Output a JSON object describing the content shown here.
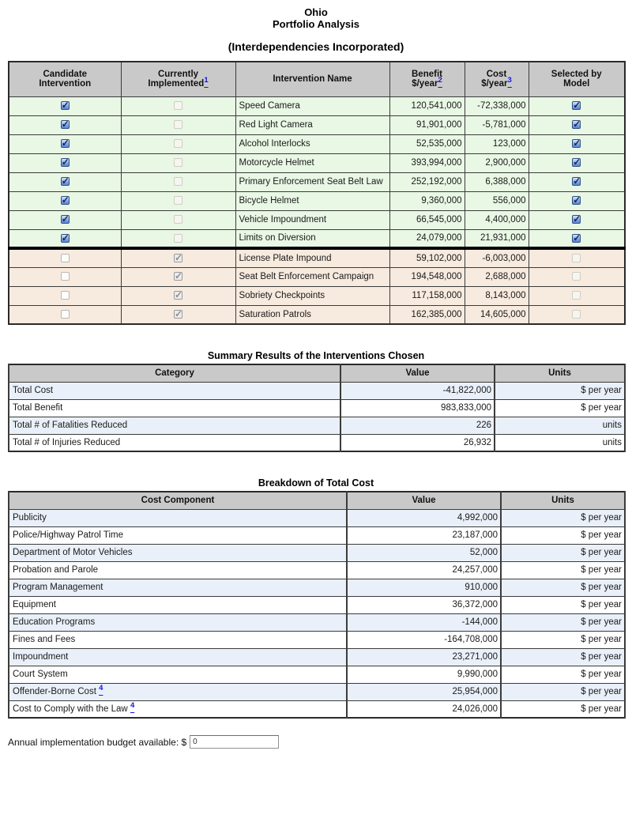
{
  "title": {
    "line1": "Ohio",
    "line2": "Portfolio Analysis",
    "line3": "(Interdependencies Incorporated)"
  },
  "colors": {
    "candidate_row": "#e9f7e5",
    "implemented_row": "#f7eade",
    "alt_row": "#eaf0f9",
    "header_bg": "#c9c9c9",
    "link_blue": "#1414e6",
    "checkbox_blue": "#5c85d6"
  },
  "main_table": {
    "headers": [
      {
        "line1": "Candidate",
        "line2": "Intervention"
      },
      {
        "line1": "Currently",
        "line2": "Implemented",
        "footnote": "1"
      },
      {
        "line1": "Intervention Name"
      },
      {
        "line1": "Benefit",
        "line2": "$/year",
        "footnote": "2"
      },
      {
        "line1": "Cost",
        "line2": "$/year",
        "footnote": "3"
      },
      {
        "line1": "Selected by",
        "line2": "Model"
      }
    ],
    "rows": [
      {
        "candidate": true,
        "implemented": false,
        "name": "Speed Camera",
        "benefit": "120,541,000",
        "cost": "-72,338,000",
        "selected": true,
        "section": "candidate"
      },
      {
        "candidate": true,
        "implemented": false,
        "name": "Red Light Camera",
        "benefit": "91,901,000",
        "cost": "-5,781,000",
        "selected": true,
        "section": "candidate"
      },
      {
        "candidate": true,
        "implemented": false,
        "name": "Alcohol Interlocks",
        "benefit": "52,535,000",
        "cost": "123,000",
        "selected": true,
        "section": "candidate"
      },
      {
        "candidate": true,
        "implemented": false,
        "name": "Motorcycle Helmet",
        "benefit": "393,994,000",
        "cost": "2,900,000",
        "selected": true,
        "section": "candidate"
      },
      {
        "candidate": true,
        "implemented": false,
        "name": "Primary Enforcement Seat Belt Law",
        "benefit": "252,192,000",
        "cost": "6,388,000",
        "selected": true,
        "section": "candidate"
      },
      {
        "candidate": true,
        "implemented": false,
        "name": "Bicycle Helmet",
        "benefit": "9,360,000",
        "cost": "556,000",
        "selected": true,
        "section": "candidate"
      },
      {
        "candidate": true,
        "implemented": false,
        "name": "Vehicle Impoundment",
        "benefit": "66,545,000",
        "cost": "4,400,000",
        "selected": true,
        "section": "candidate"
      },
      {
        "candidate": true,
        "implemented": false,
        "name": "Limits on Diversion",
        "benefit": "24,079,000",
        "cost": "21,931,000",
        "selected": true,
        "section": "candidate"
      },
      {
        "candidate": false,
        "implemented": true,
        "name": "License Plate Impound",
        "benefit": "59,102,000",
        "cost": "-6,003,000",
        "selected": false,
        "section": "implemented"
      },
      {
        "candidate": false,
        "implemented": true,
        "name": "Seat Belt Enforcement Campaign",
        "benefit": "194,548,000",
        "cost": "2,688,000",
        "selected": false,
        "section": "implemented"
      },
      {
        "candidate": false,
        "implemented": true,
        "name": "Sobriety Checkpoints",
        "benefit": "117,158,000",
        "cost": "8,143,000",
        "selected": false,
        "section": "implemented"
      },
      {
        "candidate": false,
        "implemented": true,
        "name": "Saturation Patrols",
        "benefit": "162,385,000",
        "cost": "14,605,000",
        "selected": false,
        "section": "implemented"
      }
    ]
  },
  "summary_table": {
    "title": "Summary Results of the Interventions Chosen",
    "headers": [
      "Category",
      "Value",
      "Units"
    ],
    "rows": [
      {
        "label": "Total Cost",
        "value": "-41,822,000",
        "units": "$ per year"
      },
      {
        "label": "Total Benefit",
        "value": "983,833,000",
        "units": "$ per year"
      },
      {
        "label": "Total # of Fatalities Reduced",
        "value": "226",
        "units": "units"
      },
      {
        "label": "Total # of Injuries Reduced",
        "value": "26,932",
        "units": "units"
      }
    ]
  },
  "breakdown_table": {
    "title": "Breakdown of Total Cost",
    "headers": [
      "Cost Component",
      "Value",
      "Units"
    ],
    "rows": [
      {
        "label": "Publicity",
        "value": "4,992,000",
        "units": "$ per year"
      },
      {
        "label": "Police/Highway Patrol Time",
        "value": "23,187,000",
        "units": "$ per year"
      },
      {
        "label": "Department of Motor Vehicles",
        "value": "52,000",
        "units": "$ per year"
      },
      {
        "label": "Probation and Parole",
        "value": "24,257,000",
        "units": "$ per year"
      },
      {
        "label": "Program Management",
        "value": "910,000",
        "units": "$ per year"
      },
      {
        "label": "Equipment",
        "value": "36,372,000",
        "units": "$ per year"
      },
      {
        "label": "Education Programs",
        "value": "-144,000",
        "units": "$ per year"
      },
      {
        "label": "Fines and Fees",
        "value": "-164,708,000",
        "units": "$ per year"
      },
      {
        "label": "Impoundment",
        "value": "23,271,000",
        "units": "$ per year"
      },
      {
        "label": "Court System",
        "value": "9,990,000",
        "units": "$ per year"
      },
      {
        "label": "Offender-Borne Cost",
        "footnote": "4",
        "value": "25,954,000",
        "units": "$ per year"
      },
      {
        "label": "Cost to Comply with the Law",
        "footnote": "4",
        "value": "24,026,000",
        "units": "$ per year"
      }
    ]
  },
  "budget": {
    "label": "Annual implementation budget available: $",
    "value": "0"
  }
}
